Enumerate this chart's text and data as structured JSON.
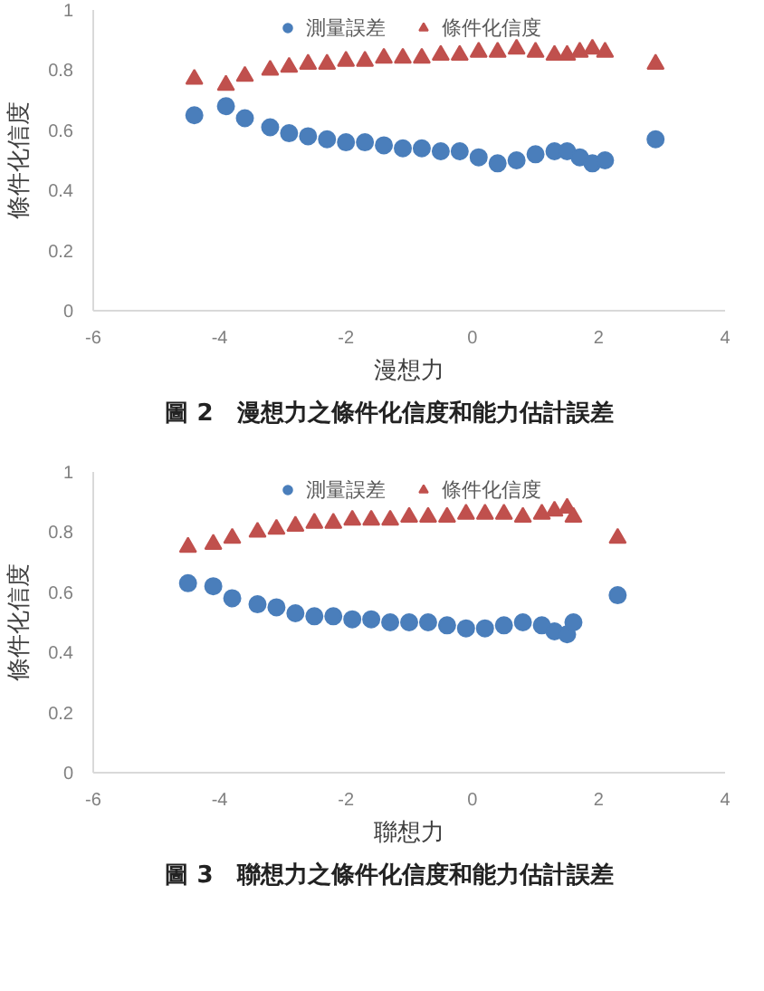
{
  "chart_data": [
    {
      "type": "scatter",
      "xlabel": "漫想力",
      "ylabel": "條件化信度",
      "annotations": [
        "圖 2　漫想力之條件化信度和能力估計誤差"
      ],
      "xlim": [
        -6,
        4
      ],
      "xticks": [
        -6,
        -4,
        -2,
        0,
        2,
        4
      ],
      "ylim": [
        0,
        1
      ],
      "yticks": [
        0,
        0.2,
        0.4,
        0.6,
        0.8,
        1
      ],
      "grid": false,
      "legend": "top",
      "x": [
        -4.4,
        -3.9,
        -3.6,
        -3.2,
        -2.9,
        -2.6,
        -2.3,
        -2.0,
        -1.7,
        -1.4,
        -1.1,
        -0.8,
        -0.5,
        -0.2,
        0.1,
        0.4,
        0.7,
        1.0,
        1.3,
        1.5,
        1.7,
        1.9,
        2.1,
        2.9
      ],
      "series": [
        {
          "name": "測量誤差",
          "color": "#4a7ebb",
          "marker": "circle",
          "values": [
            0.65,
            0.68,
            0.64,
            0.61,
            0.59,
            0.58,
            0.57,
            0.56,
            0.56,
            0.55,
            0.54,
            0.54,
            0.53,
            0.53,
            0.51,
            0.49,
            0.5,
            0.52,
            0.53,
            0.53,
            0.51,
            0.49,
            0.5,
            0.57
          ]
        },
        {
          "name": "條件化信度",
          "color": "#c0504d",
          "marker": "triangle",
          "values": [
            0.77,
            0.75,
            0.78,
            0.8,
            0.81,
            0.82,
            0.82,
            0.83,
            0.83,
            0.84,
            0.84,
            0.84,
            0.85,
            0.85,
            0.86,
            0.86,
            0.87,
            0.86,
            0.85,
            0.85,
            0.86,
            0.87,
            0.86,
            0.82
          ]
        }
      ]
    },
    {
      "type": "scatter",
      "xlabel": "聯想力",
      "ylabel": "條件化信度",
      "annotations": [
        "圖 3　聯想力之條件化信度和能力估計誤差"
      ],
      "xlim": [
        -6,
        4
      ],
      "xticks": [
        -6,
        -4,
        -2,
        0,
        2,
        4
      ],
      "ylim": [
        0,
        1
      ],
      "yticks": [
        0,
        0.2,
        0.4,
        0.6,
        0.8,
        1
      ],
      "grid": false,
      "legend": "top",
      "x": [
        -4.5,
        -4.1,
        -3.8,
        -3.4,
        -3.1,
        -2.8,
        -2.5,
        -2.2,
        -1.9,
        -1.6,
        -1.3,
        -1.0,
        -0.7,
        -0.4,
        -0.1,
        0.2,
        0.5,
        0.8,
        1.1,
        1.3,
        1.5,
        1.6,
        2.3
      ],
      "series": [
        {
          "name": "測量誤差",
          "color": "#4a7ebb",
          "marker": "circle",
          "values": [
            0.63,
            0.62,
            0.58,
            0.56,
            0.55,
            0.53,
            0.52,
            0.52,
            0.51,
            0.51,
            0.5,
            0.5,
            0.5,
            0.49,
            0.48,
            0.48,
            0.49,
            0.5,
            0.49,
            0.47,
            0.46,
            0.5,
            0.59
          ]
        },
        {
          "name": "條件化信度",
          "color": "#c0504d",
          "marker": "triangle",
          "values": [
            0.75,
            0.76,
            0.78,
            0.8,
            0.81,
            0.82,
            0.83,
            0.83,
            0.84,
            0.84,
            0.84,
            0.85,
            0.85,
            0.85,
            0.86,
            0.86,
            0.86,
            0.85,
            0.86,
            0.87,
            0.88,
            0.85,
            0.78
          ]
        }
      ]
    }
  ]
}
